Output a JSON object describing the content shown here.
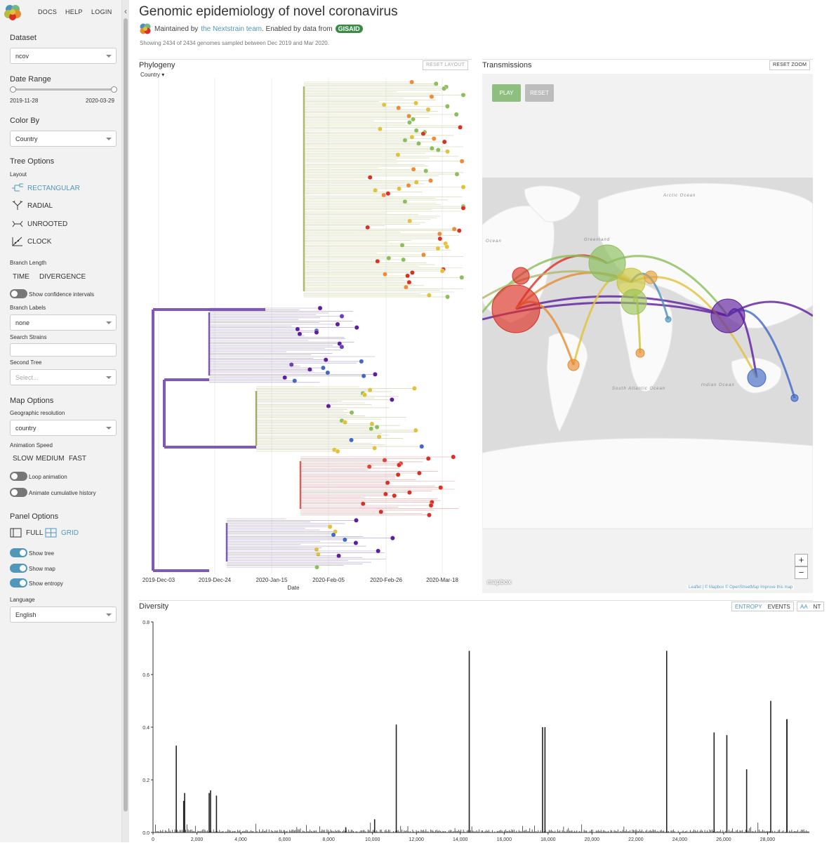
{
  "nav": {
    "docs": "DOCS",
    "help": "HELP",
    "login": "LOGIN"
  },
  "sidebar": {
    "dataset_title": "Dataset",
    "dataset_value": "ncov",
    "date_range_title": "Date Range",
    "date_start": "2019-11-28",
    "date_end": "2020-03-29",
    "color_by_title": "Color By",
    "color_by_value": "Country",
    "tree_options_title": "Tree Options",
    "layout_label": "Layout",
    "layouts": [
      "RECTANGULAR",
      "RADIAL",
      "UNROOTED",
      "CLOCK"
    ],
    "branch_length_label": "Branch Length",
    "branch_time": "TIME",
    "branch_divergence": "DIVERGENCE",
    "confidence_label": "Show confidence intervals",
    "branch_labels_label": "Branch Labels",
    "branch_labels_value": "none",
    "search_strains_label": "Search Strains",
    "second_tree_label": "Second Tree",
    "second_tree_placeholder": "Select...",
    "map_options_title": "Map Options",
    "geo_res_label": "Geographic resolution",
    "geo_res_value": "country",
    "anim_speed_label": "Animation Speed",
    "speed_slow": "SLOW",
    "speed_medium": "MEDIUM",
    "speed_fast": "FAST",
    "loop_label": "Loop animation",
    "cumulative_label": "Animate cumulative history",
    "panel_options_title": "Panel Options",
    "panel_full": "FULL",
    "panel_grid": "GRID",
    "show_tree": "Show tree",
    "show_map": "Show map",
    "show_entropy": "Show entropy",
    "language_label": "Language",
    "language_value": "English"
  },
  "header": {
    "title": "Genomic epidemiology of novel coronavirus",
    "maintained_prefix": "Maintained by",
    "maintained_link": "the Nextstrain team",
    "enabled_text": ". Enabled by data from",
    "gisaid": "GISAID",
    "showing": "Showing 2434 of 2434 genomes sampled between Dec 2019 and Mar 2020."
  },
  "tree": {
    "title": "Phylogeny",
    "reset_layout": "RESET LAYOUT",
    "filter_label": "Country",
    "x_axis_label": "Date",
    "ticks": [
      "2019-Dec-03",
      "2019-Dec-24",
      "2020-Jan-15",
      "2020-Feb-05",
      "2020-Feb-26",
      "2020-Mar-18"
    ]
  },
  "map": {
    "title": "Transmissions",
    "reset_zoom": "RESET ZOOM",
    "play": "PLAY",
    "reset": "RESET",
    "zoom_in": "+",
    "zoom_out": "−",
    "labels": [
      "Arctic Ocean",
      "Greenland",
      "South Atlantic Ocean",
      "Indian Ocean",
      "Ocean"
    ],
    "attribution_brand": "mapbox",
    "attribution": "Leaflet | © Mapbox © OpenStreetMap Improve this map"
  },
  "diversity": {
    "title": "Diversity",
    "entropy": "ENTROPY",
    "events": "EVENTS",
    "aa": "AA",
    "nt": "NT"
  },
  "colors": {
    "accent": "#5097BA",
    "purple": "#5E1D9D",
    "red": "#DC2F24",
    "green": "#8BBF5B",
    "yellow": "#E2C13B",
    "blue": "#4168C5"
  },
  "chart_data": {
    "type": "bar",
    "xlim": [
      0,
      29903
    ],
    "ylim": [
      0,
      0.8
    ],
    "x_ticks": [
      0,
      2000,
      4000,
      6000,
      8000,
      10000,
      12000,
      14000,
      16000,
      18000,
      20000,
      22000,
      24000,
      26000,
      28000
    ],
    "x_tick_labels": [
      "0",
      "2,000",
      "4,000",
      "6,000",
      "8,000",
      "10,000",
      "12,000",
      "14,000",
      "16,000",
      "18,000",
      "20,000",
      "22,000",
      "24,000",
      "26,000",
      "28,000"
    ],
    "y_ticks": [
      0,
      0.2,
      0.4,
      0.6,
      0.8
    ],
    "y_tick_labels": [
      "0.0",
      "0.2",
      "0.4",
      "0.6",
      "0.8"
    ],
    "peaks": [
      {
        "x": 1059,
        "y": 0.33
      },
      {
        "x": 1397,
        "y": 0.12
      },
      {
        "x": 1440,
        "y": 0.15
      },
      {
        "x": 2558,
        "y": 0.15
      },
      {
        "x": 2621,
        "y": 0.16
      },
      {
        "x": 2891,
        "y": 0.14
      },
      {
        "x": 8782,
        "y": 0.02
      },
      {
        "x": 10097,
        "y": 0.05
      },
      {
        "x": 11083,
        "y": 0.41
      },
      {
        "x": 14408,
        "y": 0.69
      },
      {
        "x": 17747,
        "y": 0.4
      },
      {
        "x": 17858,
        "y": 0.4
      },
      {
        "x": 23403,
        "y": 0.69
      },
      {
        "x": 25563,
        "y": 0.38
      },
      {
        "x": 26144,
        "y": 0.37
      },
      {
        "x": 27046,
        "y": 0.24
      },
      {
        "x": 28144,
        "y": 0.5
      },
      {
        "x": 28881,
        "y": 0.43
      },
      {
        "x": 28882,
        "y": 0.43
      },
      {
        "x": 28883,
        "y": 0.43
      }
    ]
  }
}
